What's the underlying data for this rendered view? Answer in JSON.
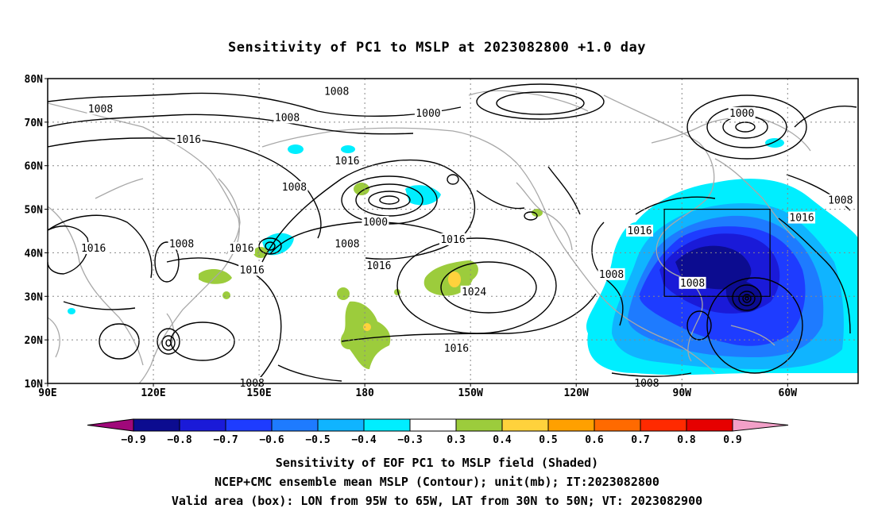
{
  "title": "Sensitivity of PC1 to MSLP at 2023082800 +1.0 day",
  "lat_labels": [
    "80N",
    "70N",
    "60N",
    "50N",
    "40N",
    "30N",
    "20N",
    "10N"
  ],
  "lon_labels": [
    "90E",
    "120E",
    "150E",
    "180",
    "150W",
    "120W",
    "90W",
    "60W"
  ],
  "colorbar": {
    "labels": [
      "-0.9",
      "-0.8",
      "-0.7",
      "-0.6",
      "-0.5",
      "-0.4",
      "-0.3",
      "0.3",
      "0.4",
      "0.5",
      "0.6",
      "0.7",
      "0.8",
      "0.9"
    ],
    "colors": [
      "#a0087a",
      "#0c0c90",
      "#1a1ad8",
      "#1e3cff",
      "#1e7bff",
      "#10b4ff",
      "#00eeff",
      "#ffffff",
      "#9ccc3c",
      "#ffd23c",
      "#ffa000",
      "#ff6a00",
      "#ff2a00",
      "#e60000",
      "#f2a0c8"
    ]
  },
  "contour_labels": [
    {
      "text": "1008",
      "lon": 105,
      "lat": 73
    },
    {
      "text": "1008",
      "lon": 158,
      "lat": 71
    },
    {
      "text": "1016",
      "lon": 130,
      "lat": 66
    },
    {
      "text": "1008",
      "lon": 172,
      "lat": 77
    },
    {
      "text": "1000",
      "lon": 198,
      "lat": 72
    },
    {
      "text": "1000",
      "lon": 287,
      "lat": 72
    },
    {
      "text": "1016",
      "lon": 175,
      "lat": 61
    },
    {
      "text": "1008",
      "lon": 160,
      "lat": 55
    },
    {
      "text": "1000",
      "lon": 183,
      "lat": 47
    },
    {
      "text": "1008",
      "lon": 175,
      "lat": 42
    },
    {
      "text": "1016",
      "lon": 205,
      "lat": 43
    },
    {
      "text": "1016",
      "lon": 103,
      "lat": 41
    },
    {
      "text": "1008",
      "lon": 128,
      "lat": 42
    },
    {
      "text": "1016",
      "lon": 145,
      "lat": 41
    },
    {
      "text": "1016",
      "lon": 148,
      "lat": 36
    },
    {
      "text": "1016",
      "lon": 184,
      "lat": 37
    },
    {
      "text": "1024",
      "lon": 211,
      "lat": 31
    },
    {
      "text": "1016",
      "lon": 206,
      "lat": 18
    },
    {
      "text": "1008",
      "lon": 250,
      "lat": 35
    },
    {
      "text": "1016",
      "lon": 258,
      "lat": 45
    },
    {
      "text": "1008",
      "lon": 315,
      "lat": 52
    },
    {
      "text": "1016",
      "lon": 304,
      "lat": 48
    },
    {
      "text": "1008",
      "lon": 273,
      "lat": 33
    },
    {
      "text": "1008",
      "lon": 148,
      "lat": 10
    },
    {
      "text": "1008",
      "lon": 260,
      "lat": 10
    }
  ],
  "valid_box": {
    "lon_from": -95,
    "lon_to": -65,
    "lat_from": 30,
    "lat_to": 50
  },
  "captions": {
    "line1": "Sensitivity of EOF PC1 to MSLP field (Shaded)",
    "line2": "NCEP+CMC ensemble mean MSLP (Contour); unit(mb); IT:2023082800",
    "line3": "Valid area (box): LON from 95W to 65W, LAT from 30N to 50N; VT: 2023082900"
  }
}
